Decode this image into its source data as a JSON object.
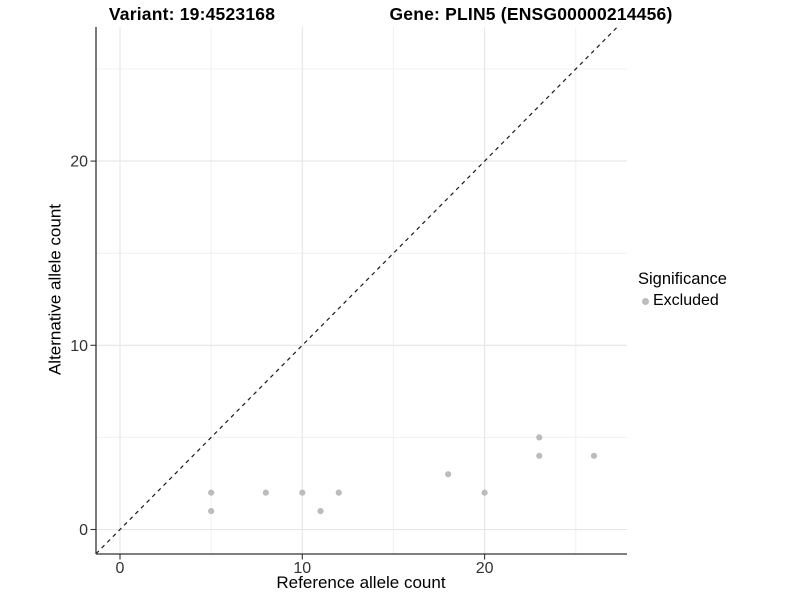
{
  "titles": {
    "left": "Variant: 19:4523168",
    "right": "Gene: PLIN5 (ENSG00000214456)"
  },
  "legend": {
    "title": "Significance",
    "items": [
      {
        "label": "Excluded",
        "color": "#bcbcbc"
      }
    ]
  },
  "chart_data": {
    "type": "scatter",
    "title_left": "Variant: 19:4523168",
    "title_right": "Gene: PLIN5 (ENSG00000214456)",
    "xlabel": "Reference allele count",
    "ylabel": "Alternative allele count",
    "series": [
      {
        "name": "Excluded",
        "color": "#bcbcbc",
        "points": [
          [
            5,
            1
          ],
          [
            5,
            2
          ],
          [
            8,
            2
          ],
          [
            10,
            2
          ],
          [
            11,
            1
          ],
          [
            12,
            2
          ],
          [
            18,
            3
          ],
          [
            20,
            2
          ],
          [
            23,
            4
          ],
          [
            23,
            5
          ],
          [
            26,
            4
          ]
        ]
      }
    ],
    "xlim": [
      -1.32,
      27.8
    ],
    "ylim": [
      -1.33,
      27.3
    ],
    "x_major_ticks": [
      0,
      10,
      20
    ],
    "y_major_ticks": [
      0,
      10,
      20
    ],
    "x_minor_ticks": [
      5,
      15,
      25
    ],
    "y_minor_ticks": [
      5,
      15,
      25
    ],
    "grid": true,
    "reference_line": {
      "type": "identity",
      "style": "dashed",
      "color": "#1a1a1a"
    },
    "legend_title": "Significance",
    "legend_position": "right",
    "colors": {
      "point": "#bcbcbc",
      "grid_major": "#e5e5e5",
      "grid_minor": "#f0f0f0",
      "axis_line": "#333333",
      "tick_text": "#333333"
    }
  }
}
